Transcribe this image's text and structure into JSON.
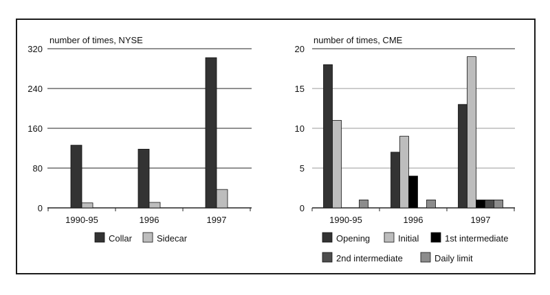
{
  "colors": {
    "collar": "#333333",
    "sidecar": "#bdbdbd",
    "opening": "#333333",
    "initial": "#bdbdbd",
    "first_intermediate": "#000000",
    "second_intermediate": "#4d4d4d",
    "daily_limit": "#8c8c8c"
  },
  "chart_data": [
    {
      "type": "bar",
      "title": "",
      "ylabel": "number of times, NYSE",
      "xlabel": "",
      "categories": [
        "1990-95",
        "1996",
        "1997"
      ],
      "ylim": [
        0,
        320
      ],
      "yticks": [
        "0",
        "80",
        "160",
        "240",
        "320"
      ],
      "grid": true,
      "legend_position": "bottom",
      "series": [
        {
          "name": "Collar",
          "values": [
            126,
            118,
            302
          ]
        },
        {
          "name": "Sidecar",
          "values": [
            10,
            11,
            37
          ]
        }
      ]
    },
    {
      "type": "bar",
      "title": "",
      "ylabel": "number of times, CME",
      "xlabel": "",
      "categories": [
        "1990-95",
        "1996",
        "1997"
      ],
      "ylim": [
        0,
        20
      ],
      "yticks": [
        "0",
        "5",
        "10",
        "15",
        "20"
      ],
      "grid": true,
      "legend_position": "bottom",
      "series": [
        {
          "name": "Opening",
          "values": [
            18,
            7,
            13
          ]
        },
        {
          "name": "Initial",
          "values": [
            11,
            9,
            19
          ]
        },
        {
          "name": "1st intermediate",
          "values": [
            0,
            4,
            1
          ]
        },
        {
          "name": "2nd intermediate",
          "values": [
            0,
            0,
            1
          ]
        },
        {
          "name": "Daily limit",
          "values": [
            1,
            1,
            1
          ]
        }
      ]
    }
  ]
}
